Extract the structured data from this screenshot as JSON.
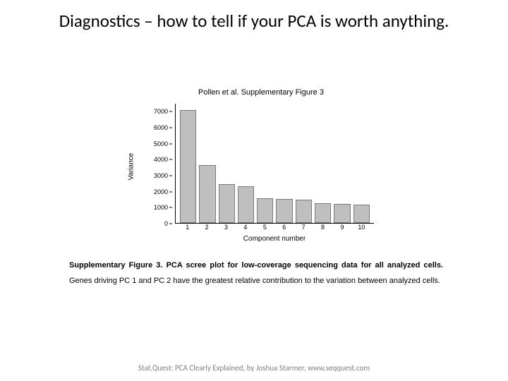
{
  "slide": {
    "title": "Diagnostics – how to tell if your PCA is worth anything."
  },
  "chart": {
    "type": "bar",
    "title": "Pollen et al. Supplementary Figure 3",
    "ylabel": "Variance",
    "xlabel": "Component number",
    "categories": [
      "1",
      "2",
      "3",
      "4",
      "5",
      "6",
      "7",
      "8",
      "9",
      "10"
    ],
    "values": [
      7100,
      3650,
      2450,
      2300,
      1550,
      1500,
      1450,
      1250,
      1200,
      1150
    ],
    "ylim": [
      0,
      7500
    ],
    "yticks": [
      0,
      1000,
      2000,
      3000,
      4000,
      5000,
      6000,
      7000
    ],
    "bar_fill": "#bfbfbf",
    "bar_border": "#7a7a7a",
    "axis_color": "#000000",
    "plot_bg": "#ffffff",
    "title_fontsize": 11,
    "label_fontsize": 10,
    "tick_fontsize": 9
  },
  "caption": {
    "bold_lead": "Supplementary Figure 3",
    "bold_rest": ". PCA scree plot for low-coverage sequencing data for all analyzed cells.",
    "rest": " Genes driving PC 1 and PC 2 have the greatest relative contribution to the variation between analyzed cells."
  },
  "footer": {
    "text": "Stat.Quest: PCA Clearly Explained, by Joshua Starmer, www.seqquest.com"
  }
}
